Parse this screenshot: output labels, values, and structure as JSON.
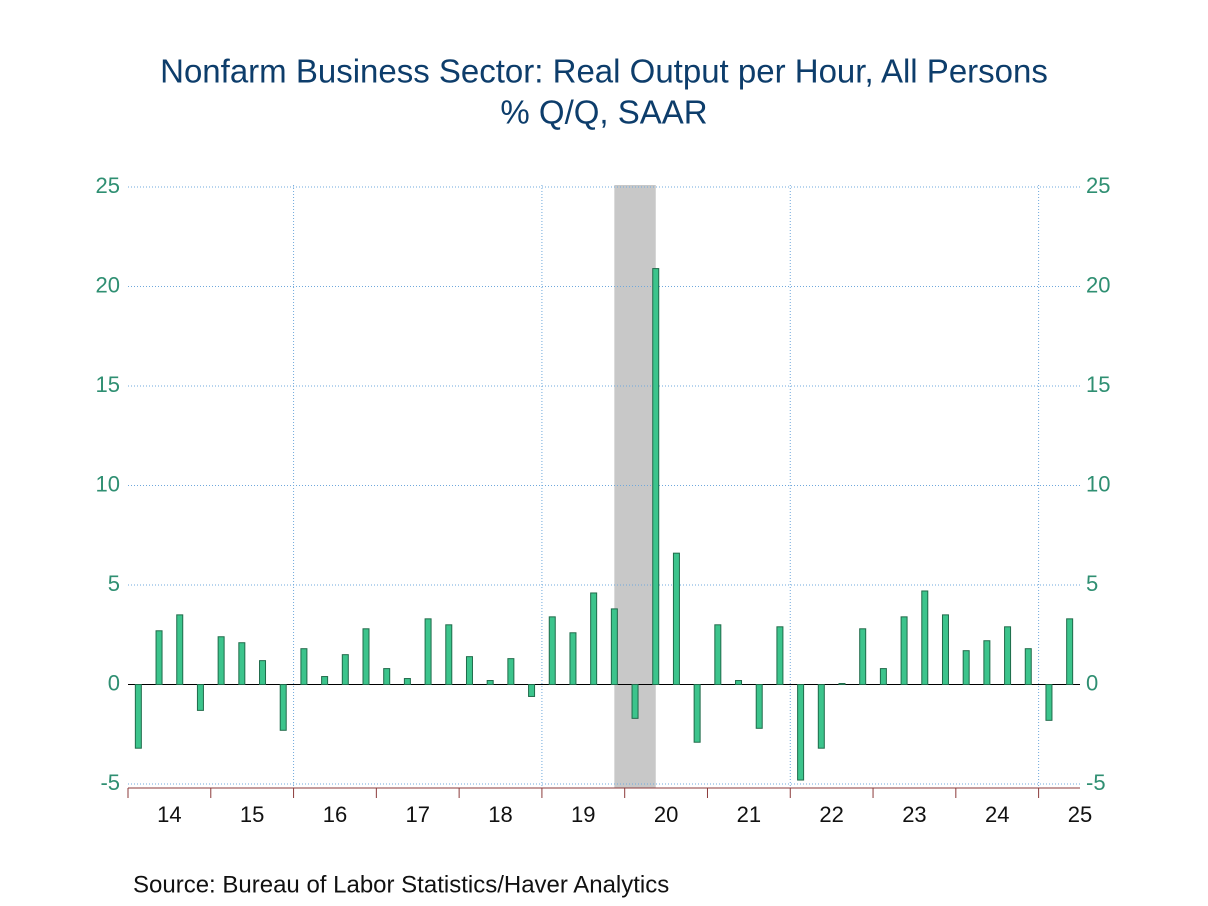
{
  "chart_data": {
    "type": "bar",
    "title": "Nonfarm Business Sector: Real Output per Hour, All Persons",
    "subtitle": "% Q/Q, SAAR",
    "source": "Source:  Bureau of Labor Statistics/Haver Analytics",
    "categories": [
      null,
      null,
      null,
      null,
      null,
      null,
      null,
      null,
      null,
      null,
      null,
      null,
      null,
      null,
      null,
      null,
      null,
      null,
      null,
      null,
      null,
      null,
      null,
      null,
      null,
      null,
      null,
      null,
      null,
      null,
      null,
      null,
      null,
      null,
      null,
      null,
      null,
      null,
      null,
      null,
      null,
      null,
      null,
      null,
      null,
      null
    ],
    "year_labels": [
      "14",
      "15",
      "16",
      "17",
      "18",
      "19",
      "20",
      "21",
      "22",
      "23",
      "24",
      "25"
    ],
    "values": [
      -3.2,
      2.7,
      3.5,
      -1.3,
      2.4,
      2.1,
      1.2,
      -2.3,
      1.8,
      0.4,
      1.5,
      2.8,
      0.8,
      0.3,
      3.3,
      3.0,
      1.4,
      0.2,
      1.3,
      -0.6,
      3.4,
      2.6,
      4.6,
      3.8,
      -1.7,
      20.9,
      6.6,
      -2.9,
      3.0,
      0.2,
      -2.2,
      2.9,
      -4.8,
      -3.2,
      0.05,
      2.8,
      0.8,
      3.4,
      4.7,
      3.5,
      1.7,
      2.2,
      2.9,
      1.8,
      -1.8,
      3.3
    ],
    "color": "#3cc48c",
    "ylim": [
      -5.2,
      25.1
    ],
    "yticks": [
      -5,
      0,
      5,
      10,
      15,
      20,
      25
    ],
    "recession": [
      23,
      25
    ],
    "grid": true
  }
}
